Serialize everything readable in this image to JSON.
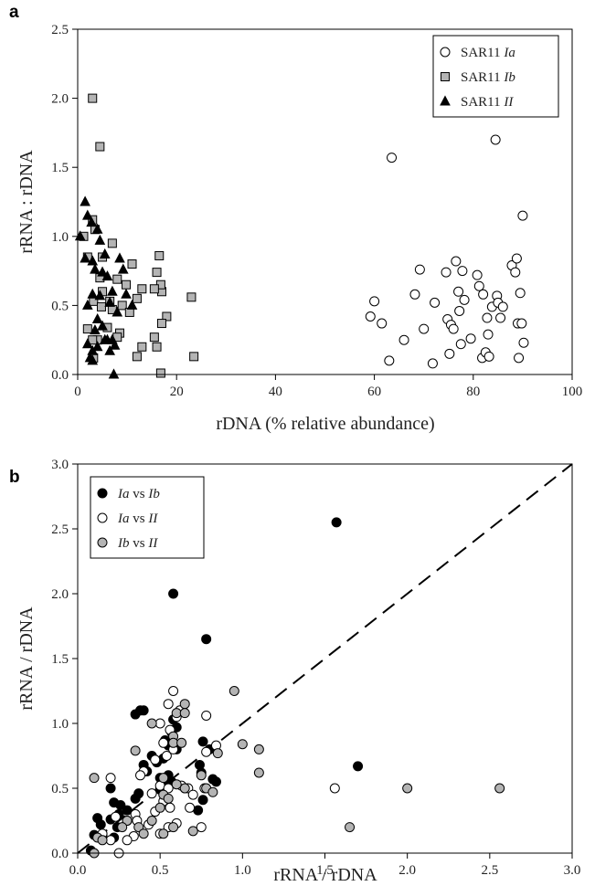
{
  "chart_data": [
    {
      "panel_label": "a",
      "type": "scatter",
      "xlabel": "rDNA (% relative abundance)",
      "ylabel": "rRNA : rDNA",
      "xlim": [
        0,
        100
      ],
      "ylim": [
        0,
        2.5
      ],
      "xticks": [
        "0",
        "20",
        "40",
        "60",
        "80",
        "100"
      ],
      "yticks": [
        "0.0",
        "0.5",
        "1.0",
        "1.5",
        "2.0",
        "2.5"
      ],
      "grid": false,
      "legend_position": "top-right",
      "series": [
        {
          "legend_prefix": "SAR11 ",
          "legend_suffix": "Ia",
          "marker": "circle",
          "fill": "#ffffff",
          "stroke": "#000000",
          "points": [
            [
              63.5,
              1.57
            ],
            [
              84.5,
              1.7
            ],
            [
              90,
              1.15
            ],
            [
              59.2,
              0.42
            ],
            [
              60,
              0.53
            ],
            [
              61.5,
              0.37
            ],
            [
              63,
              0.1
            ],
            [
              66,
              0.25
            ],
            [
              68.2,
              0.58
            ],
            [
              69.2,
              0.76
            ],
            [
              70,
              0.33
            ],
            [
              71.8,
              0.08
            ],
            [
              72.2,
              0.52
            ],
            [
              74.5,
              0.74
            ],
            [
              74.8,
              0.4
            ],
            [
              75.2,
              0.15
            ],
            [
              75.5,
              0.36
            ],
            [
              76,
              0.33
            ],
            [
              76.5,
              0.82
            ],
            [
              77,
              0.6
            ],
            [
              77.2,
              0.46
            ],
            [
              77.5,
              0.22
            ],
            [
              77.8,
              0.75
            ],
            [
              78.2,
              0.54
            ],
            [
              79.5,
              0.26
            ],
            [
              80.8,
              0.72
            ],
            [
              81.2,
              0.64
            ],
            [
              81.8,
              0.12
            ],
            [
              82,
              0.58
            ],
            [
              82.5,
              0.16
            ],
            [
              82.8,
              0.41
            ],
            [
              83,
              0.29
            ],
            [
              83.2,
              0.13
            ],
            [
              83.8,
              0.49
            ],
            [
              84.8,
              0.57
            ],
            [
              85,
              0.52
            ],
            [
              85.5,
              0.41
            ],
            [
              86,
              0.49
            ],
            [
              87.8,
              0.79
            ],
            [
              88.5,
              0.74
            ],
            [
              88.8,
              0.84
            ],
            [
              89,
              0.37
            ],
            [
              89.2,
              0.12
            ],
            [
              89.5,
              0.59
            ],
            [
              89.8,
              0.37
            ],
            [
              90.2,
              0.23
            ]
          ]
        },
        {
          "legend_prefix": "SAR11 ",
          "legend_suffix": "Ib",
          "marker": "square",
          "fill": "#b4b4b4",
          "stroke": "#000000",
          "points": [
            [
              3,
              2.0
            ],
            [
              4.5,
              1.65
            ],
            [
              1.2,
              1.0
            ],
            [
              3,
              1.12
            ],
            [
              3.5,
              1.05
            ],
            [
              7,
              0.95
            ],
            [
              2,
              0.85
            ],
            [
              5,
              0.85
            ],
            [
              16.5,
              0.86
            ],
            [
              11,
              0.8
            ],
            [
              8,
              0.69
            ],
            [
              4.5,
              0.7
            ],
            [
              16,
              0.74
            ],
            [
              17,
              0.6
            ],
            [
              16.8,
              0.65
            ],
            [
              23,
              0.56
            ],
            [
              9.8,
              0.65
            ],
            [
              5,
              0.6
            ],
            [
              15.5,
              0.62
            ],
            [
              13,
              0.62
            ],
            [
              12,
              0.55
            ],
            [
              6.5,
              0.53
            ],
            [
              3.2,
              0.53
            ],
            [
              9,
              0.5
            ],
            [
              4.8,
              0.49
            ],
            [
              10.5,
              0.45
            ],
            [
              7,
              0.47
            ],
            [
              18,
              0.42
            ],
            [
              2,
              0.33
            ],
            [
              17,
              0.37
            ],
            [
              8.5,
              0.3
            ],
            [
              6,
              0.34
            ],
            [
              4,
              0.25
            ],
            [
              8,
              0.27
            ],
            [
              3,
              0.25
            ],
            [
              15.5,
              0.27
            ],
            [
              13,
              0.2
            ],
            [
              16,
              0.2
            ],
            [
              12,
              0.13
            ],
            [
              23.5,
              0.13
            ],
            [
              3.2,
              0.12
            ],
            [
              16.8,
              0.01
            ]
          ]
        },
        {
          "legend_prefix": "SAR11 ",
          "legend_suffix": "II",
          "marker": "triangle",
          "fill": "#000000",
          "stroke": "#000000",
          "points": [
            [
              1.5,
              1.25
            ],
            [
              2,
              1.15
            ],
            [
              2.8,
              1.1
            ],
            [
              0.5,
              1.0
            ],
            [
              4,
              1.05
            ],
            [
              4.5,
              0.97
            ],
            [
              5.5,
              0.87
            ],
            [
              1.5,
              0.84
            ],
            [
              3,
              0.82
            ],
            [
              3.5,
              0.76
            ],
            [
              5,
              0.74
            ],
            [
              8.5,
              0.84
            ],
            [
              9.2,
              0.76
            ],
            [
              6,
              0.71
            ],
            [
              7,
              0.6
            ],
            [
              4.5,
              0.57
            ],
            [
              3,
              0.58
            ],
            [
              6.5,
              0.52
            ],
            [
              9.8,
              0.58
            ],
            [
              2,
              0.5
            ],
            [
              4,
              0.4
            ],
            [
              8,
              0.45
            ],
            [
              5,
              0.35
            ],
            [
              11,
              0.5
            ],
            [
              3.5,
              0.32
            ],
            [
              6,
              0.25
            ],
            [
              2,
              0.22
            ],
            [
              4,
              0.2
            ],
            [
              5.5,
              0.25
            ],
            [
              3,
              0.17
            ],
            [
              7,
              0.25
            ],
            [
              7.5,
              0.21
            ],
            [
              6.5,
              0.17
            ],
            [
              2.5,
              0.12
            ],
            [
              3,
              0.1
            ],
            [
              7.3,
              0.0
            ]
          ]
        }
      ]
    },
    {
      "panel_label": "b",
      "type": "scatter",
      "xlabel": "rRNA / rDNA",
      "ylabel": "rRNA / rDNA",
      "xlim": [
        0,
        3
      ],
      "ylim": [
        0,
        3
      ],
      "xticks": [
        "0.0",
        "0.5",
        "1.0",
        "1.5",
        "2.0",
        "2.5",
        "3.0"
      ],
      "yticks": [
        "0.0",
        "0.5",
        "1.0",
        "1.5",
        "2.0",
        "2.5",
        "3.0"
      ],
      "grid": false,
      "legend_position": "top-left",
      "reference_line": "y = x (dashed)",
      "series": [
        {
          "legend_prefix": "",
          "legend_suffix": "Ia vs Ib",
          "marker": "circle",
          "fill": "#000000",
          "stroke": "#000000",
          "points": [
            [
              1.57,
              2.55
            ],
            [
              0.58,
              2.0
            ],
            [
              0.78,
              1.65
            ],
            [
              1.7,
              0.67
            ],
            [
              0.38,
              1.1
            ],
            [
              0.4,
              1.1
            ],
            [
              0.35,
              1.07
            ],
            [
              0.58,
              1.03
            ],
            [
              0.6,
              0.97
            ],
            [
              0.57,
              0.93
            ],
            [
              0.53,
              0.87
            ],
            [
              0.76,
              0.86
            ],
            [
              0.55,
              0.83
            ],
            [
              0.6,
              0.8
            ],
            [
              0.8,
              0.8
            ],
            [
              0.45,
              0.75
            ],
            [
              0.52,
              0.73
            ],
            [
              0.48,
              0.7
            ],
            [
              0.4,
              0.68
            ],
            [
              0.74,
              0.68
            ],
            [
              0.42,
              0.63
            ],
            [
              0.75,
              0.62
            ],
            [
              0.5,
              0.58
            ],
            [
              0.55,
              0.6
            ],
            [
              0.82,
              0.57
            ],
            [
              0.84,
              0.55
            ],
            [
              0.52,
              0.52
            ],
            [
              0.57,
              0.55
            ],
            [
              0.65,
              0.5
            ],
            [
              0.2,
              0.5
            ],
            [
              0.5,
              0.49
            ],
            [
              0.37,
              0.46
            ],
            [
              0.35,
              0.42
            ],
            [
              0.76,
              0.41
            ],
            [
              0.22,
              0.39
            ],
            [
              0.26,
              0.37
            ],
            [
              0.3,
              0.33
            ],
            [
              0.73,
              0.33
            ],
            [
              0.25,
              0.3
            ],
            [
              0.12,
              0.27
            ],
            [
              0.2,
              0.26
            ],
            [
              0.14,
              0.22
            ],
            [
              0.24,
              0.2
            ],
            [
              0.15,
              0.14
            ],
            [
              0.1,
              0.14
            ],
            [
              0.22,
              0.12
            ],
            [
              0.08,
              0.02
            ]
          ]
        },
        {
          "legend_prefix": "",
          "legend_suffix": "Ia vs II",
          "marker": "circle",
          "fill": "#ffffff",
          "stroke": "#000000",
          "points": [
            [
              0.58,
              1.25
            ],
            [
              0.55,
              1.15
            ],
            [
              0.62,
              1.1
            ],
            [
              0.6,
              1.05
            ],
            [
              0.78,
              1.06
            ],
            [
              0.5,
              1.0
            ],
            [
              0.56,
              0.95
            ],
            [
              0.52,
              0.85
            ],
            [
              0.58,
              0.8
            ],
            [
              0.54,
              0.75
            ],
            [
              0.84,
              0.83
            ],
            [
              0.78,
              0.78
            ],
            [
              0.47,
              0.72
            ],
            [
              0.4,
              0.63
            ],
            [
              0.38,
              0.6
            ],
            [
              0.2,
              0.58
            ],
            [
              0.5,
              0.52
            ],
            [
              0.63,
              0.52
            ],
            [
              0.55,
              0.5
            ],
            [
              0.77,
              0.5
            ],
            [
              0.67,
              0.5
            ],
            [
              1.56,
              0.5
            ],
            [
              0.45,
              0.46
            ],
            [
              0.52,
              0.4
            ],
            [
              0.7,
              0.45
            ],
            [
              0.56,
              0.35
            ],
            [
              0.68,
              0.35
            ],
            [
              0.47,
              0.32
            ],
            [
              0.35,
              0.3
            ],
            [
              0.23,
              0.28
            ],
            [
              0.3,
              0.25
            ],
            [
              0.36,
              0.25
            ],
            [
              0.43,
              0.22
            ],
            [
              0.6,
              0.23
            ],
            [
              0.55,
              0.2
            ],
            [
              0.75,
              0.2
            ],
            [
              0.15,
              0.15
            ],
            [
              0.34,
              0.13
            ],
            [
              0.5,
              0.15
            ],
            [
              0.2,
              0.1
            ],
            [
              0.3,
              0.1
            ],
            [
              0.25,
              0.0
            ]
          ]
        },
        {
          "legend_prefix": "",
          "legend_suffix": "Ib vs II",
          "marker": "circle",
          "fill": "#b4b4b4",
          "stroke": "#000000",
          "points": [
            [
              0.95,
              1.25
            ],
            [
              0.65,
              1.15
            ],
            [
              0.6,
              1.08
            ],
            [
              0.65,
              1.08
            ],
            [
              0.45,
              1.0
            ],
            [
              0.58,
              0.9
            ],
            [
              0.58,
              0.85
            ],
            [
              0.63,
              0.85
            ],
            [
              1.0,
              0.84
            ],
            [
              1.1,
              0.8
            ],
            [
              0.35,
              0.79
            ],
            [
              0.85,
              0.77
            ],
            [
              0.75,
              0.6
            ],
            [
              0.65,
              0.5
            ],
            [
              0.78,
              0.5
            ],
            [
              1.1,
              0.62
            ],
            [
              0.52,
              0.58
            ],
            [
              0.1,
              0.58
            ],
            [
              0.6,
              0.53
            ],
            [
              0.82,
              0.47
            ],
            [
              2.0,
              0.5
            ],
            [
              2.56,
              0.5
            ],
            [
              0.52,
              0.45
            ],
            [
              0.55,
              0.42
            ],
            [
              0.5,
              0.35
            ],
            [
              1.65,
              0.2
            ],
            [
              0.45,
              0.25
            ],
            [
              0.3,
              0.25
            ],
            [
              0.37,
              0.2
            ],
            [
              0.27,
              0.2
            ],
            [
              0.58,
              0.2
            ],
            [
              0.7,
              0.17
            ],
            [
              0.4,
              0.15
            ],
            [
              0.52,
              0.15
            ],
            [
              0.12,
              0.12
            ],
            [
              0.15,
              0.1
            ],
            [
              0.1,
              0.0
            ]
          ]
        }
      ]
    }
  ]
}
